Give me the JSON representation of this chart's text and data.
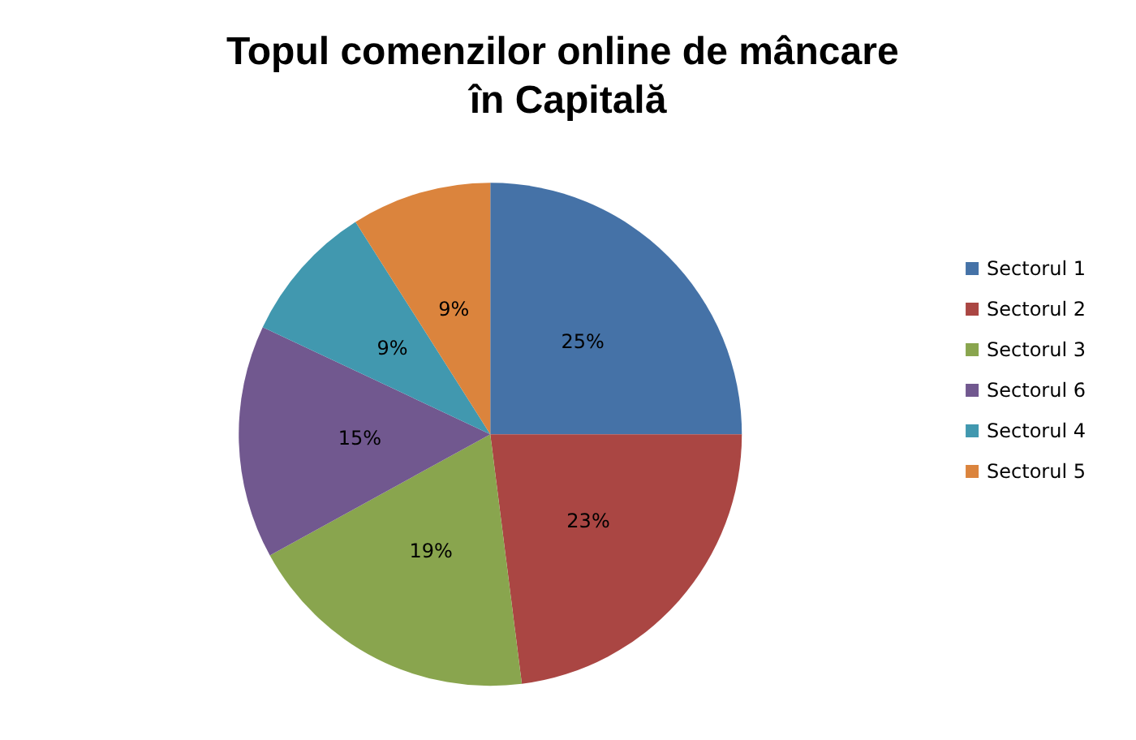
{
  "chart_data": {
    "type": "pie",
    "title": "Topul comenzilor online de mâncare în Capitală",
    "categories": [
      "Sectorul 1",
      "Sectorul 2",
      "Sectorul 3",
      "Sectorul 6",
      "Sectorul 4",
      "Sectorul 5"
    ],
    "values": [
      25,
      23,
      19,
      15,
      9,
      9
    ],
    "value_labels": [
      "25%",
      "23%",
      "19%",
      "15%",
      "9%",
      "9%"
    ],
    "colors": [
      "#4572a7",
      "#aa4643",
      "#89a54e",
      "#71588f",
      "#4198af",
      "#db843d"
    ],
    "legend": "right"
  }
}
